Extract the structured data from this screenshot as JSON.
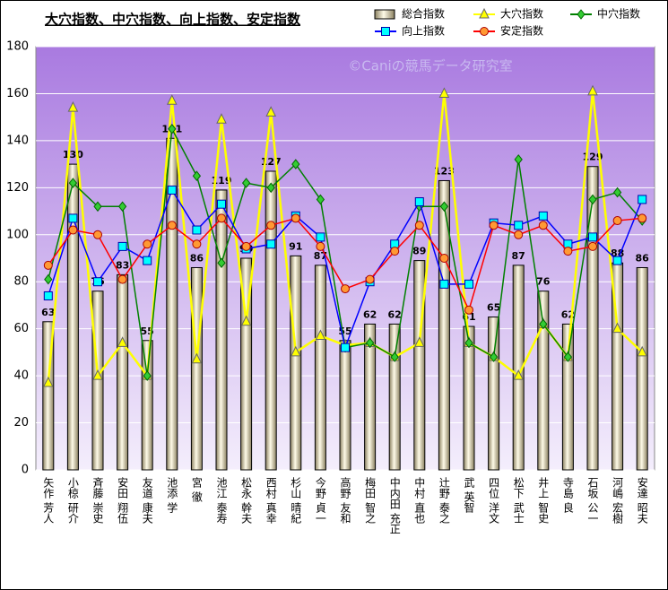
{
  "chart_data": {
    "type": "bar",
    "title": "大穴指数、中穴指数、向上指数、安定指数",
    "watermark": "©Caniの競馬データ研究室",
    "categories": [
      "矢作 芳人",
      "小椋 研介",
      "斉藤 崇史",
      "安田 翔伍",
      "友道 康夫",
      "池添 学",
      "宮 徹",
      "池江 泰寿",
      "松永 幹夫",
      "西村 真幸",
      "杉山 晴紀",
      "今野 貞一",
      "高野 友和",
      "梅田 智之",
      "中内田 充正",
      "中村 直也",
      "辻野 泰之",
      "武 英智",
      "四位 洋文",
      "松下 武士",
      "井上 智史",
      "寺島 良",
      "石坂 公一",
      "河嶋 宏樹",
      "安達 昭夫"
    ],
    "series": [
      {
        "name": "総合指数",
        "type": "bar",
        "color": "#d8d0a0",
        "values": [
          63,
          130,
          76,
          83,
          55,
          141,
          86,
          119,
          90,
          127,
          91,
          87,
          55,
          62,
          62,
          89,
          123,
          61,
          65,
          87,
          76,
          62,
          129,
          88,
          86
        ]
      },
      {
        "name": "大穴指数",
        "type": "line",
        "marker": "triangle",
        "color": "#ffff00",
        "values": [
          37,
          154,
          40,
          54,
          40,
          157,
          47,
          149,
          63,
          152,
          50,
          57,
          53,
          54,
          48,
          54,
          160,
          54,
          48,
          40,
          62,
          48,
          161,
          60,
          50
        ]
      },
      {
        "name": "中穴指数",
        "type": "line",
        "marker": "diamond",
        "color": "#008000",
        "values": [
          81,
          122,
          112,
          112,
          40,
          145,
          125,
          88,
          122,
          120,
          130,
          115,
          52,
          54,
          48,
          112,
          112,
          54,
          48,
          132,
          62,
          48,
          115,
          118,
          106
        ]
      },
      {
        "name": "向上指数",
        "type": "line",
        "marker": "square",
        "color": "#0000ff",
        "values": [
          74,
          107,
          80,
          95,
          89,
          119,
          102,
          113,
          94,
          96,
          108,
          99,
          52,
          80,
          96,
          114,
          79,
          79,
          105,
          104,
          108,
          96,
          99,
          89,
          115
        ]
      },
      {
        "name": "安定指数",
        "type": "line",
        "marker": "circle",
        "color": "#ff0000",
        "values": [
          87,
          102,
          100,
          81,
          96,
          104,
          96,
          107,
          95,
          104,
          107,
          95,
          77,
          81,
          93,
          104,
          90,
          68,
          104,
          100,
          104,
          93,
          95,
          106,
          107
        ]
      }
    ],
    "ylim": [
      0,
      180
    ],
    "yticks": [
      0,
      20,
      40,
      60,
      80,
      100,
      120,
      140,
      160,
      180
    ],
    "grid": true
  }
}
